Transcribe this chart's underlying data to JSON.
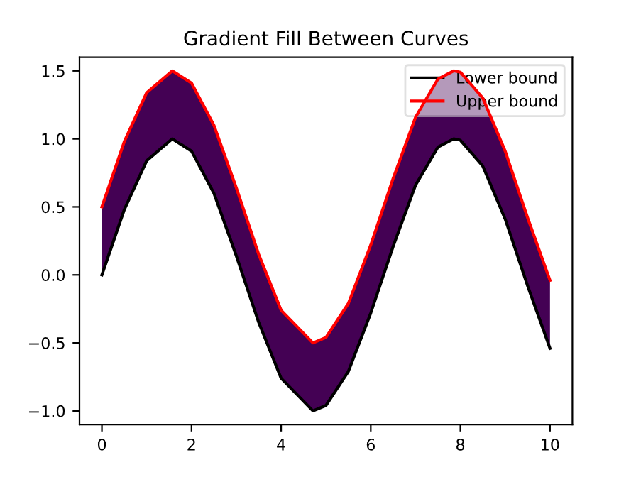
{
  "chart_data": {
    "type": "line",
    "title": "Gradient Fill Between Curves",
    "x": [
      0,
      0.5,
      1,
      1.57,
      2,
      2.5,
      3,
      3.5,
      4,
      4.71,
      5,
      5.5,
      6,
      6.5,
      7,
      7.5,
      7.85,
      8,
      8.5,
      9,
      9.5,
      10
    ],
    "series": [
      {
        "name": "Lower bound",
        "color": "#000000",
        "values": [
          0,
          0.48,
          0.84,
          1.0,
          0.91,
          0.6,
          0.14,
          -0.35,
          -0.76,
          -1.0,
          -0.96,
          -0.71,
          -0.28,
          0.21,
          0.66,
          0.94,
          1.0,
          0.99,
          0.8,
          0.41,
          -0.08,
          -0.54
        ]
      },
      {
        "name": "Upper bound",
        "color": "#ff0000",
        "values": [
          0.5,
          0.98,
          1.34,
          1.5,
          1.41,
          1.1,
          0.64,
          0.15,
          -0.26,
          -0.5,
          -0.46,
          -0.21,
          0.22,
          0.71,
          1.16,
          1.44,
          1.5,
          1.49,
          1.3,
          0.91,
          0.42,
          -0.04
        ],
        "lower": [
          0,
          0.48,
          0.84,
          1.0,
          0.91,
          0.6,
          0.14,
          -0.35,
          -0.76,
          -1.0,
          -0.96,
          -0.71,
          -0.28,
          0.21,
          0.66,
          0.94,
          1.0,
          0.99,
          0.8,
          0.41,
          -0.08,
          -0.54
        ],
        "upper": [
          0.5,
          0.98,
          1.34,
          1.5,
          1.41,
          1.1,
          0.64,
          0.15,
          -0.26,
          -0.5,
          -0.46,
          -0.21,
          0.22,
          0.71,
          1.16,
          1.44,
          1.5,
          1.49,
          1.3,
          0.91,
          0.42,
          -0.04
        ]
      }
    ],
    "xlim": [
      -0.5,
      10.5
    ],
    "ylim": [
      -1.1,
      1.6
    ],
    "xticks": [
      0,
      2,
      4,
      6,
      8,
      10
    ],
    "yticks": [
      {
        "value": -1.0,
        "label": "−1.0"
      },
      {
        "value": -0.5,
        "label": "−0.5"
      },
      {
        "value": 0.0,
        "label": "0.0"
      },
      {
        "value": 0.5,
        "label": "0.5"
      },
      {
        "value": 1.0,
        "label": "1.0"
      },
      {
        "value": 1.5,
        "label": "1.5"
      }
    ],
    "legend": "top right",
    "grid": false
  }
}
